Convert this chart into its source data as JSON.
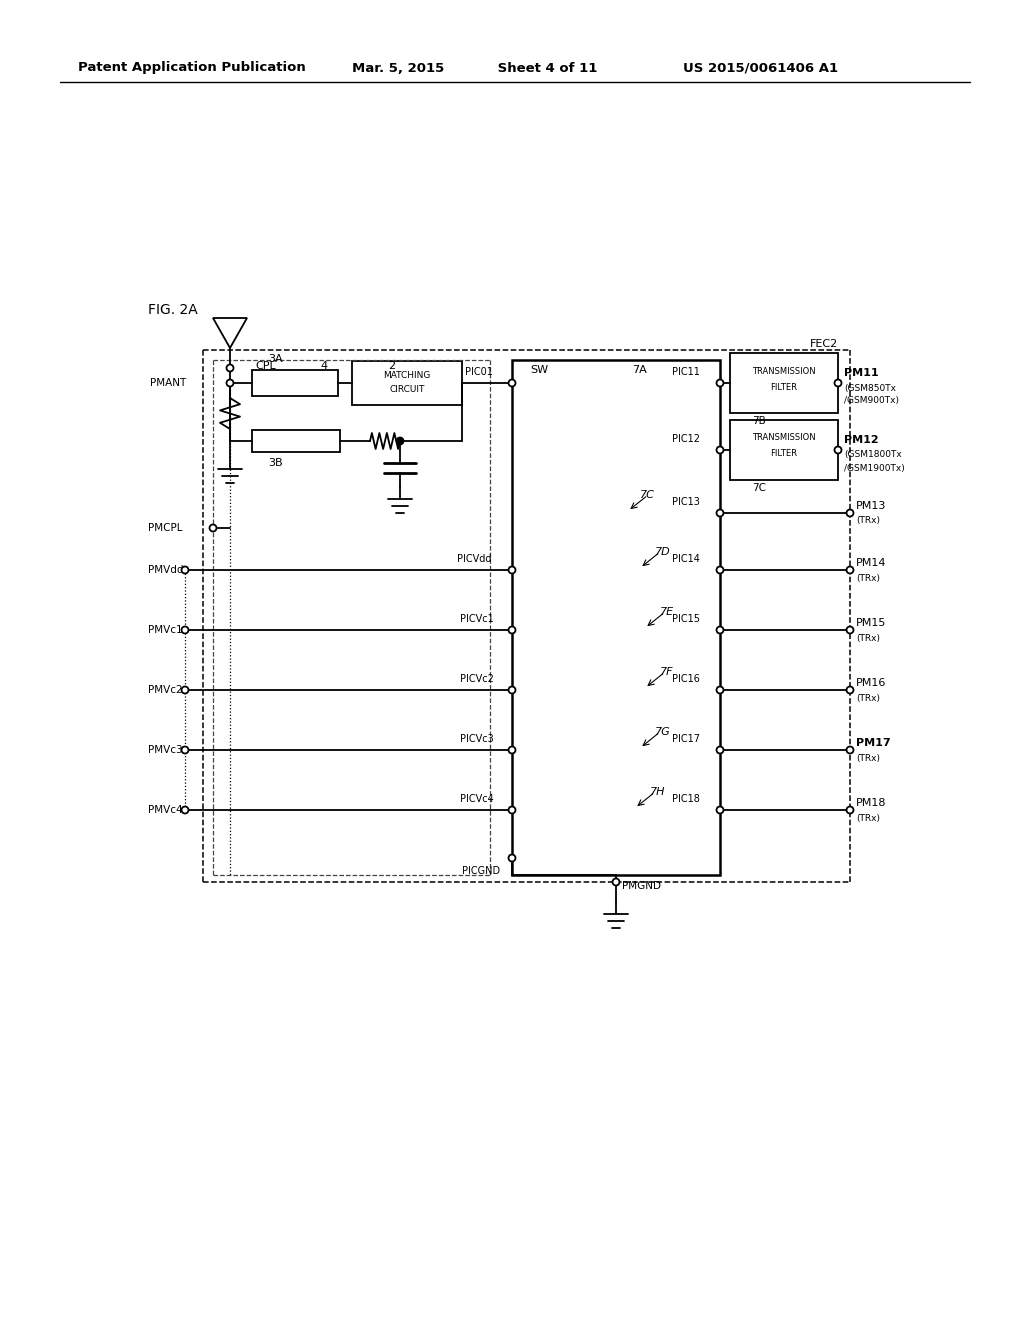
{
  "header_left": "Patent Application Publication",
  "header_mid": "Mar. 5, 2015  Sheet 4 of 11",
  "header_right": "US 2015/0061406 A1",
  "fig_label": "FIG. 2A",
  "background": "#ffffff"
}
